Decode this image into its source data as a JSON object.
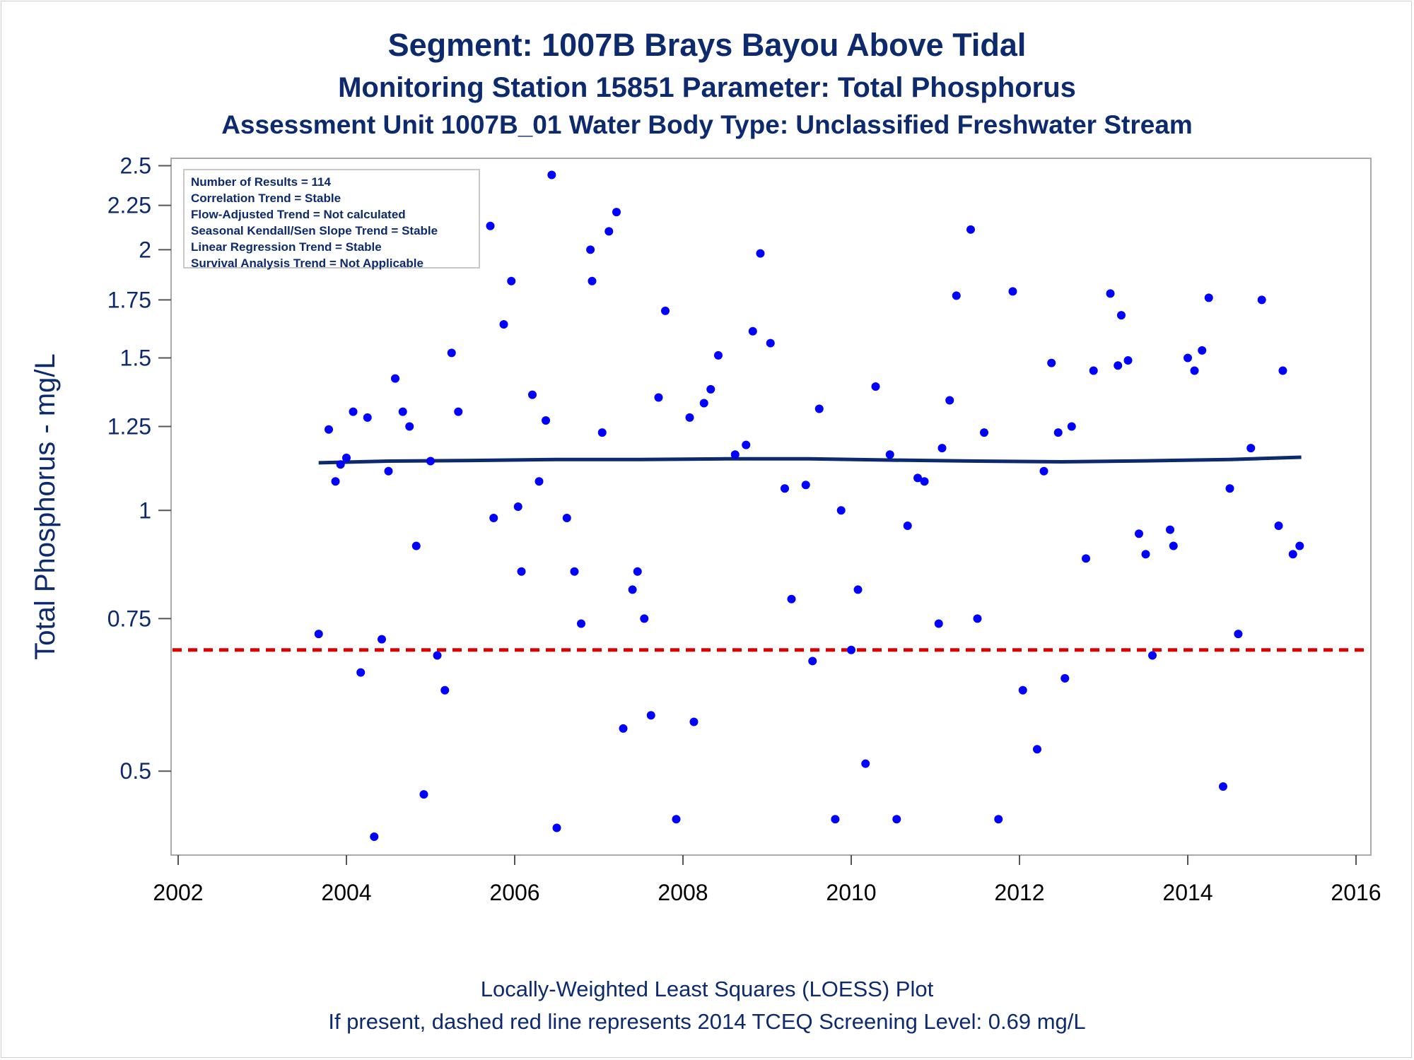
{
  "titles": {
    "line1": "Segment: 1007B  Brays Bayou Above Tidal",
    "line2": "Monitoring Station 15851 Parameter: Total Phosphorus",
    "line3": "Assessment Unit 1007B_01   Water Body Type: Unclassified Freshwater Stream"
  },
  "footnotes": {
    "line1": "Locally-Weighted Least Squares (LOESS) Plot",
    "line2": "If present, dashed red line represents 2014 TCEQ Screening Level: 0.69 mg/L"
  },
  "stats_box": [
    "Number of Results = 114",
    "Correlation Trend = Stable",
    "Flow-Adjusted Trend = Not calculated",
    "Seasonal Kendall/Sen Slope Trend = Stable",
    "Linear Regression Trend = Stable",
    "Survival Analysis Trend = Not Applicable"
  ],
  "colors": {
    "points": "#0000ff",
    "loess": "#0d2a6e",
    "screening": "#dd0000",
    "text": "#0d2a6e"
  },
  "chart_data": {
    "type": "scatter",
    "ylabel": "Total Phosphorus - mg/L",
    "xlabel": "",
    "y_scale": "log",
    "xlim": [
      2002,
      2016
    ],
    "ylim": [
      0.4,
      2.55
    ],
    "x_ticks": [
      "2002",
      "2004",
      "2006",
      "2008",
      "2010",
      "2012",
      "2014",
      "2016"
    ],
    "y_ticks": [
      "0.5",
      "0.75",
      "1",
      "1.25",
      "1.5",
      "1.75",
      "2",
      "2.25",
      "2.5"
    ],
    "screening_level": 0.69,
    "points": [
      [
        2003.67,
        0.72
      ],
      [
        2003.79,
        1.24
      ],
      [
        2003.87,
        1.08
      ],
      [
        2003.93,
        1.13
      ],
      [
        2004.0,
        1.15
      ],
      [
        2004.08,
        1.3
      ],
      [
        2004.17,
        0.65
      ],
      [
        2004.25,
        1.28
      ],
      [
        2004.33,
        0.42
      ],
      [
        2004.42,
        0.71
      ],
      [
        2004.5,
        1.11
      ],
      [
        2004.58,
        1.42
      ],
      [
        2004.67,
        1.3
      ],
      [
        2004.75,
        1.25
      ],
      [
        2004.83,
        0.91
      ],
      [
        2004.92,
        0.47
      ],
      [
        2005.0,
        1.14
      ],
      [
        2005.08,
        0.68
      ],
      [
        2005.17,
        0.62
      ],
      [
        2005.25,
        1.52
      ],
      [
        2005.33,
        1.3
      ],
      [
        2005.71,
        2.13
      ],
      [
        2005.75,
        0.98
      ],
      [
        2005.87,
        1.64
      ],
      [
        2005.96,
        1.84
      ],
      [
        2006.04,
        1.01
      ],
      [
        2006.08,
        0.85
      ],
      [
        2006.21,
        1.36
      ],
      [
        2006.29,
        1.08
      ],
      [
        2006.37,
        1.27
      ],
      [
        2006.44,
        2.44
      ],
      [
        2006.5,
        0.43
      ],
      [
        2006.62,
        0.98
      ],
      [
        2006.71,
        0.85
      ],
      [
        2006.79,
        0.74
      ],
      [
        2006.9,
        2.0
      ],
      [
        2006.92,
        1.84
      ],
      [
        2007.04,
        1.23
      ],
      [
        2007.12,
        2.1
      ],
      [
        2007.21,
        2.21
      ],
      [
        2007.29,
        0.56
      ],
      [
        2007.4,
        0.81
      ],
      [
        2007.46,
        0.85
      ],
      [
        2007.54,
        0.75
      ],
      [
        2007.62,
        0.58
      ],
      [
        2007.71,
        1.35
      ],
      [
        2007.79,
        1.7
      ],
      [
        2007.92,
        0.44
      ],
      [
        2008.08,
        1.28
      ],
      [
        2008.13,
        0.57
      ],
      [
        2008.25,
        1.33
      ],
      [
        2008.33,
        1.38
      ],
      [
        2008.42,
        1.51
      ],
      [
        2008.62,
        1.16
      ],
      [
        2008.75,
        1.19
      ],
      [
        2008.83,
        1.61
      ],
      [
        2008.92,
        1.98
      ],
      [
        2009.04,
        1.56
      ],
      [
        2009.21,
        1.06
      ],
      [
        2009.29,
        0.79
      ],
      [
        2009.46,
        1.07
      ],
      [
        2009.54,
        0.67
      ],
      [
        2009.62,
        1.31
      ],
      [
        2009.81,
        0.44
      ],
      [
        2009.88,
        1.0
      ],
      [
        2010.0,
        0.69
      ],
      [
        2010.08,
        0.81
      ],
      [
        2010.17,
        0.51
      ],
      [
        2010.29,
        1.39
      ],
      [
        2010.46,
        1.16
      ],
      [
        2010.54,
        0.44
      ],
      [
        2010.67,
        0.96
      ],
      [
        2010.79,
        1.09
      ],
      [
        2010.87,
        1.08
      ],
      [
        2011.04,
        0.74
      ],
      [
        2011.08,
        1.18
      ],
      [
        2011.17,
        1.34
      ],
      [
        2011.25,
        1.77
      ],
      [
        2011.42,
        2.11
      ],
      [
        2011.5,
        0.75
      ],
      [
        2011.58,
        1.23
      ],
      [
        2011.75,
        0.44
      ],
      [
        2011.92,
        1.79
      ],
      [
        2012.04,
        0.62
      ],
      [
        2012.21,
        0.53
      ],
      [
        2012.29,
        1.11
      ],
      [
        2012.38,
        1.48
      ],
      [
        2012.46,
        1.23
      ],
      [
        2012.54,
        0.64
      ],
      [
        2012.62,
        1.25
      ],
      [
        2012.79,
        0.88
      ],
      [
        2012.88,
        1.45
      ],
      [
        2013.08,
        1.78
      ],
      [
        2013.17,
        1.47
      ],
      [
        2013.21,
        1.68
      ],
      [
        2013.29,
        1.49
      ],
      [
        2013.42,
        0.94
      ],
      [
        2013.5,
        0.89
      ],
      [
        2013.58,
        0.68
      ],
      [
        2013.79,
        0.95
      ],
      [
        2013.83,
        0.91
      ],
      [
        2014.0,
        1.5
      ],
      [
        2014.08,
        1.45
      ],
      [
        2014.17,
        1.53
      ],
      [
        2014.25,
        1.76
      ],
      [
        2014.42,
        0.48
      ],
      [
        2014.5,
        1.06
      ],
      [
        2014.6,
        0.72
      ],
      [
        2014.75,
        1.18
      ],
      [
        2014.88,
        1.75
      ],
      [
        2015.08,
        0.96
      ],
      [
        2015.13,
        1.45
      ],
      [
        2015.25,
        0.89
      ],
      [
        2015.33,
        0.91
      ]
    ],
    "loess": [
      [
        2003.67,
        1.135
      ],
      [
        2004.5,
        1.14
      ],
      [
        2005.5,
        1.142
      ],
      [
        2006.5,
        1.145
      ],
      [
        2007.5,
        1.145
      ],
      [
        2008.5,
        1.147
      ],
      [
        2009.5,
        1.147
      ],
      [
        2010.5,
        1.143
      ],
      [
        2011.5,
        1.14
      ],
      [
        2012.5,
        1.138
      ],
      [
        2013.5,
        1.141
      ],
      [
        2014.5,
        1.145
      ],
      [
        2015.35,
        1.152
      ]
    ]
  }
}
